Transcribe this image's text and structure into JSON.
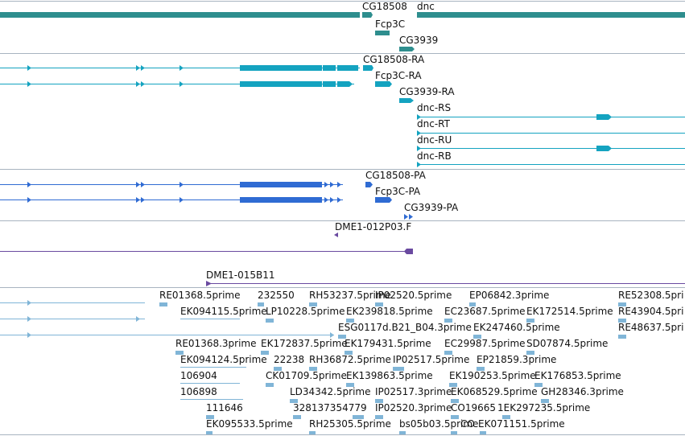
{
  "colors": {
    "gene": "#2e8e8e",
    "mrna": "#14a3c0",
    "protein": "#2f6bd3",
    "bac": "#6a4aa0",
    "est": "#80b5d7",
    "divider": "#a8b4c0"
  },
  "tracks": {
    "genes": [
      {
        "label": "CG18508"
      },
      {
        "label": "dnc"
      },
      {
        "label": "Fcp3C"
      },
      {
        "label": "CG3939"
      }
    ],
    "transcripts": [
      {
        "label": "CG18508-RA"
      },
      {
        "label": "Fcp3C-RA"
      },
      {
        "label": "CG3939-RA"
      },
      {
        "label": "dnc-RS"
      },
      {
        "label": "dnc-RT"
      },
      {
        "label": "dnc-RU"
      },
      {
        "label": "dnc-RB"
      }
    ],
    "proteins": [
      {
        "label": "CG18508-PA"
      },
      {
        "label": "Fcp3C-PA"
      },
      {
        "label": "CG3939-PA"
      }
    ],
    "bac_ends": [
      {
        "label": "DME1-012P03.F"
      },
      {
        "label": "DME1-015B11"
      }
    ],
    "ests": [
      {
        "label": "RE01368.5prime"
      },
      {
        "label": "232550"
      },
      {
        "label": "RH53237.5prime"
      },
      {
        "label": "IP02520.5prime"
      },
      {
        "label": "EP06842.3prime"
      },
      {
        "label": "RE52308.5pri"
      },
      {
        "label": "EK094115.5prime"
      },
      {
        "label": "LP10228.5prime"
      },
      {
        "label": "EK239818.5prime"
      },
      {
        "label": "EC23687.5prime"
      },
      {
        "label": "EK172514.5prime"
      },
      {
        "label": "RE43904.5pri"
      },
      {
        "label": "ESG0117d.B21_B04.3prime"
      },
      {
        "label": "EK247460.5prime"
      },
      {
        "label": "RE48637.5pri"
      },
      {
        "label": "RE01368.3prime"
      },
      {
        "label": "EK172837.5prime"
      },
      {
        "label": "EK179431.5prime"
      },
      {
        "label": "EC29987.5prime"
      },
      {
        "label": "SD07874.5prime"
      },
      {
        "label": "EK094124.5prime"
      },
      {
        "label": "22238"
      },
      {
        "label": "RH36872.5prime"
      },
      {
        "label": "IP02517.5prime"
      },
      {
        "label": "EP21859.3prime"
      },
      {
        "label": "106904"
      },
      {
        "label": "CK01709.5prime"
      },
      {
        "label": "EK139863.5prime"
      },
      {
        "label": "EK190253.5prime"
      },
      {
        "label": "EK176853.5prime"
      },
      {
        "label": "106898"
      },
      {
        "label": "LD34342.5prime"
      },
      {
        "label": "IP02517.3prime"
      },
      {
        "label": "EK068529.5prime"
      },
      {
        "label": "GH28346.3prime"
      },
      {
        "label": "111646"
      },
      {
        "label": "328137354779"
      },
      {
        "label": "IP02520.3prime"
      },
      {
        "label": "CO19665"
      },
      {
        "label": "1EK297235.5prime"
      },
      {
        "label": "EK095533.5prime"
      },
      {
        "label": "RH25305.5prime"
      },
      {
        "label": "bs05b03.5prime"
      },
      {
        "label": "CO"
      },
      {
        "label": "EK071151.5prime"
      }
    ]
  }
}
